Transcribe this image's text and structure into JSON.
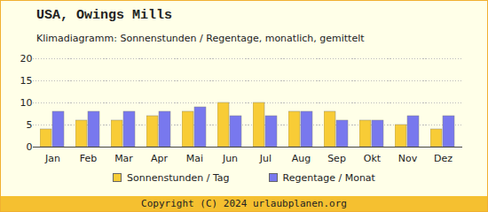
{
  "chart_data": {
    "type": "bar",
    "title": "USA, Owings Mills",
    "subtitle": "Klimadiagramm: Sonnenstunden / Regentage, monatlich, gemittelt",
    "footer": "Copyright (C) 2024 urlaubplanen.org",
    "categories": [
      "Jan",
      "Feb",
      "Mar",
      "Apr",
      "Mai",
      "Jun",
      "Jul",
      "Aug",
      "Sep",
      "Okt",
      "Nov",
      "Dez"
    ],
    "series": [
      {
        "name": "Sonnenstunden / Tag",
        "color": "#f8cc36",
        "values": [
          4,
          6,
          6,
          7,
          8,
          10,
          10,
          8,
          8,
          6,
          5,
          4
        ]
      },
      {
        "name": "Regentage / Monat",
        "color": "#7878ee",
        "values": [
          8,
          8,
          8,
          8,
          9,
          7,
          7,
          8,
          6,
          6,
          7,
          7
        ]
      }
    ],
    "ylim": [
      0,
      20
    ],
    "yticks": [
      0,
      5,
      10,
      15,
      20
    ],
    "grid": true,
    "legend": "bottom"
  }
}
